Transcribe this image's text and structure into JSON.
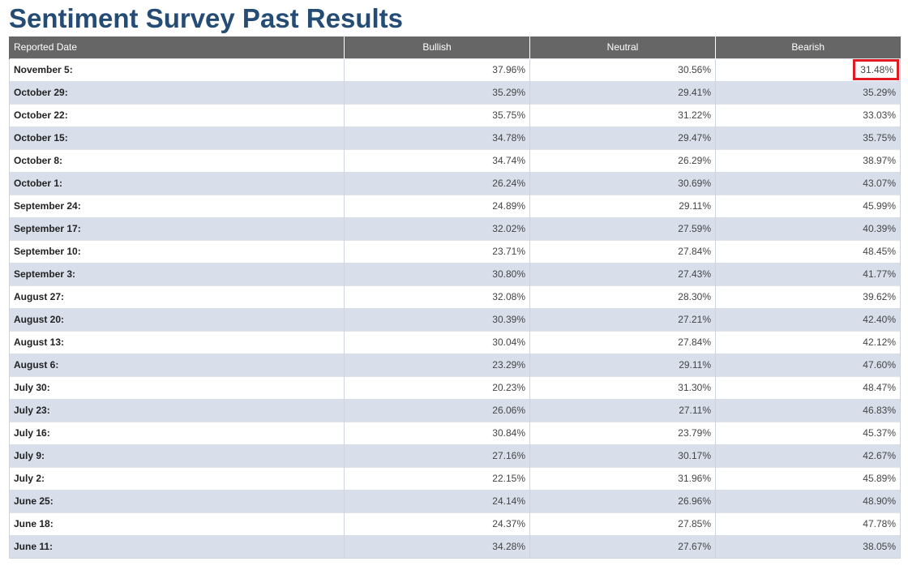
{
  "page": {
    "title": "Sentiment Survey Past Results"
  },
  "table": {
    "headers": {
      "date": "Reported Date",
      "bullish": "Bullish",
      "neutral": "Neutral",
      "bearish": "Bearish"
    },
    "rows": [
      {
        "date": "November 5:",
        "bullish": "37.96%",
        "neutral": "30.56%",
        "bearish": "31.48%",
        "highlighted": true
      },
      {
        "date": "October 29:",
        "bullish": "35.29%",
        "neutral": "29.41%",
        "bearish": "35.29%"
      },
      {
        "date": "October 22:",
        "bullish": "35.75%",
        "neutral": "31.22%",
        "bearish": "33.03%"
      },
      {
        "date": "October 15:",
        "bullish": "34.78%",
        "neutral": "29.47%",
        "bearish": "35.75%"
      },
      {
        "date": "October 8:",
        "bullish": "34.74%",
        "neutral": "26.29%",
        "bearish": "38.97%"
      },
      {
        "date": "October 1:",
        "bullish": "26.24%",
        "neutral": "30.69%",
        "bearish": "43.07%"
      },
      {
        "date": "September 24:",
        "bullish": "24.89%",
        "neutral": "29.11%",
        "bearish": "45.99%"
      },
      {
        "date": "September 17:",
        "bullish": "32.02%",
        "neutral": "27.59%",
        "bearish": "40.39%"
      },
      {
        "date": "September 10:",
        "bullish": "23.71%",
        "neutral": "27.84%",
        "bearish": "48.45%"
      },
      {
        "date": "September 3:",
        "bullish": "30.80%",
        "neutral": "27.43%",
        "bearish": "41.77%"
      },
      {
        "date": "August 27:",
        "bullish": "32.08%",
        "neutral": "28.30%",
        "bearish": "39.62%"
      },
      {
        "date": "August 20:",
        "bullish": "30.39%",
        "neutral": "27.21%",
        "bearish": "42.40%"
      },
      {
        "date": "August 13:",
        "bullish": "30.04%",
        "neutral": "27.84%",
        "bearish": "42.12%"
      },
      {
        "date": "August 6:",
        "bullish": "23.29%",
        "neutral": "29.11%",
        "bearish": "47.60%"
      },
      {
        "date": "July 30:",
        "bullish": "20.23%",
        "neutral": "31.30%",
        "bearish": "48.47%"
      },
      {
        "date": "July 23:",
        "bullish": "26.06%",
        "neutral": "27.11%",
        "bearish": "46.83%"
      },
      {
        "date": "July 16:",
        "bullish": "30.84%",
        "neutral": "23.79%",
        "bearish": "45.37%"
      },
      {
        "date": "July 9:",
        "bullish": "27.16%",
        "neutral": "30.17%",
        "bearish": "42.67%"
      },
      {
        "date": "July 2:",
        "bullish": "22.15%",
        "neutral": "31.96%",
        "bearish": "45.89%"
      },
      {
        "date": "June 25:",
        "bullish": "24.14%",
        "neutral": "26.96%",
        "bearish": "48.90%"
      },
      {
        "date": "June 18:",
        "bullish": "24.37%",
        "neutral": "27.85%",
        "bearish": "47.78%"
      },
      {
        "date": "June 11:",
        "bullish": "34.28%",
        "neutral": "27.67%",
        "bearish": "38.05%"
      }
    ]
  },
  "colors": {
    "title": "#254c74",
    "header_bg": "#666666",
    "row_alt_bg": "#d9dfea",
    "highlight_border": "#e01b24"
  }
}
